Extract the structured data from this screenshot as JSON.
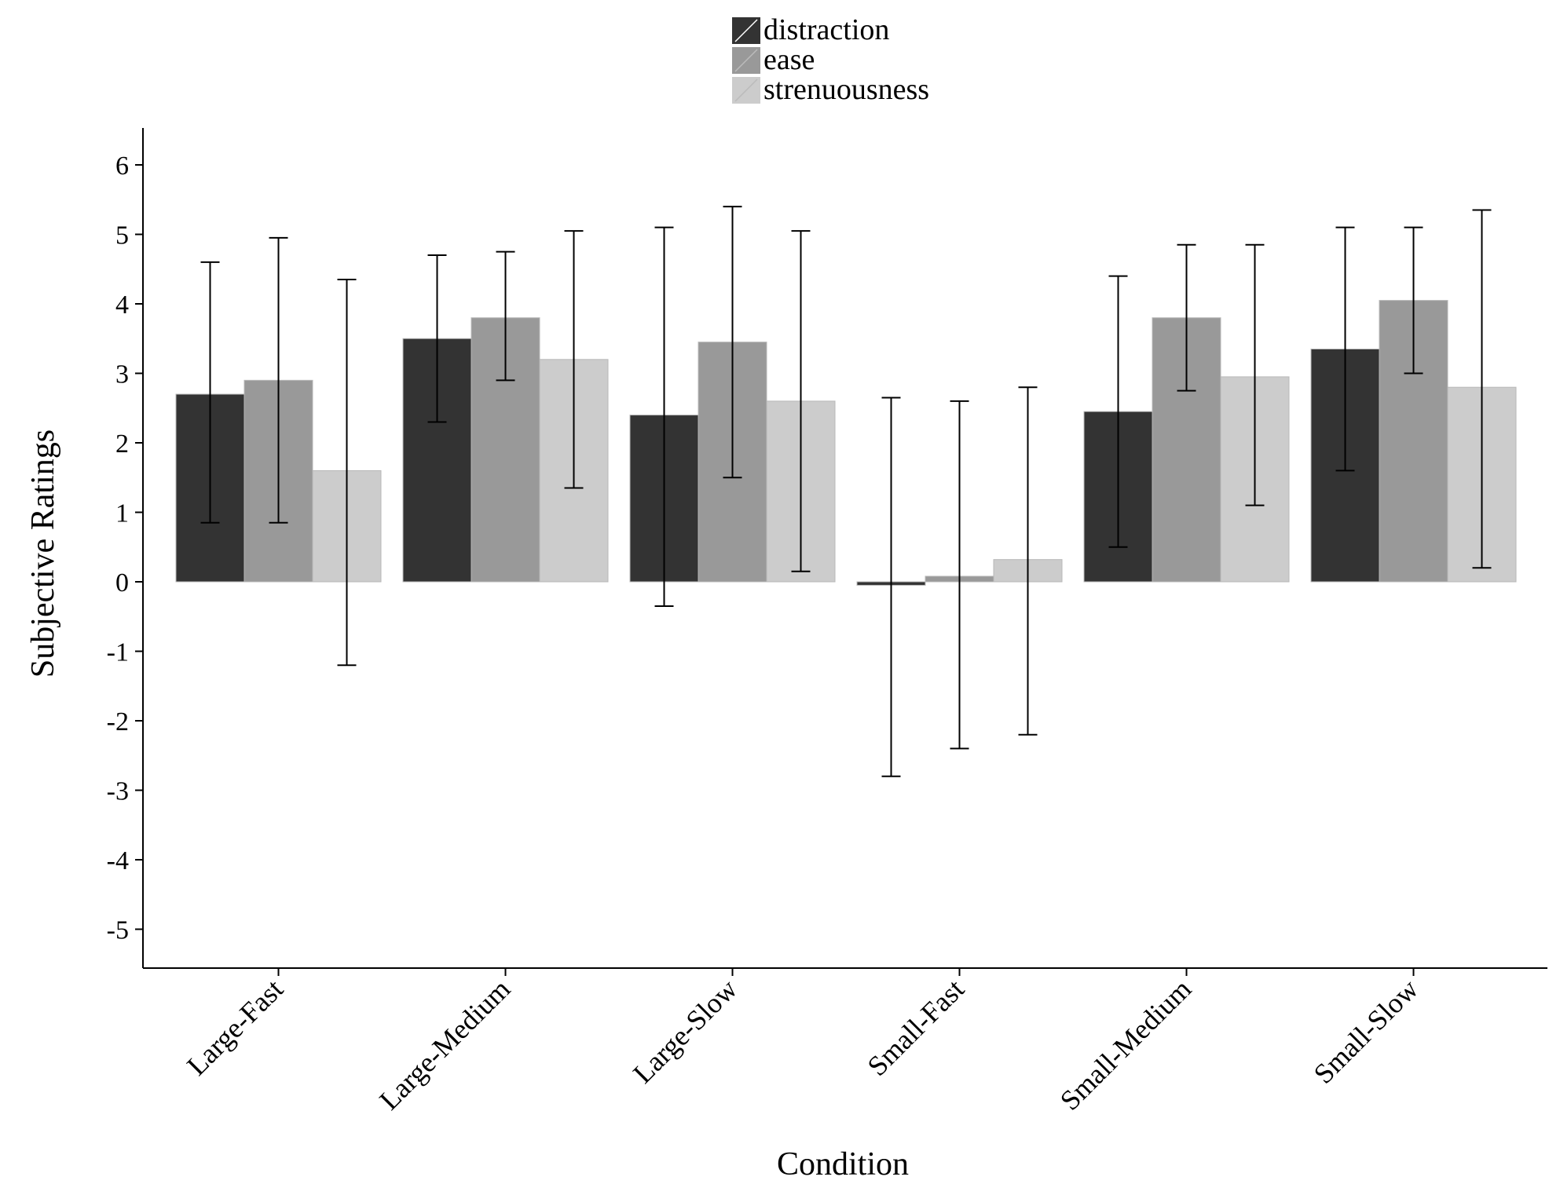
{
  "chart_data": {
    "type": "bar",
    "title": "",
    "xlabel": "Condition",
    "ylabel": "Subjective Ratings",
    "ylim": [
      -5.5,
      6.5
    ],
    "yticks": [
      6,
      5,
      4,
      3,
      2,
      1,
      0,
      -1,
      -2,
      -3,
      -4,
      -5
    ],
    "ytick_labels": [
      "6",
      "5",
      "4",
      "3",
      "2",
      "1",
      "0",
      "-1",
      "-2",
      "-3",
      "-4",
      "-5"
    ],
    "grid": false,
    "legend_position": "top-center",
    "categories": [
      "Large-Fast",
      "Large-Medium",
      "Large-Slow",
      "Small-Fast",
      "Small-Medium",
      "Small-Slow"
    ],
    "series": [
      {
        "name": "distraction",
        "color": "#333333",
        "values": [
          2.7,
          3.5,
          2.4,
          -0.05,
          2.45,
          3.35
        ],
        "err_low": [
          0.85,
          2.3,
          -0.35,
          -2.8,
          0.5,
          1.6
        ],
        "err_high": [
          4.6,
          4.7,
          5.1,
          2.65,
          4.4,
          5.1
        ]
      },
      {
        "name": "ease",
        "color": "#999999",
        "values": [
          2.9,
          3.8,
          3.45,
          0.08,
          3.8,
          4.05
        ],
        "err_low": [
          0.85,
          2.9,
          1.5,
          -2.4,
          2.75,
          3.0
        ],
        "err_high": [
          4.95,
          4.75,
          5.4,
          2.6,
          4.85,
          5.1
        ]
      },
      {
        "name": "strenuousness",
        "color": "#cccccc",
        "values": [
          1.6,
          3.2,
          2.6,
          0.32,
          2.95,
          2.8
        ],
        "err_low": [
          -1.2,
          1.35,
          0.15,
          -2.2,
          1.1,
          0.2
        ],
        "err_high": [
          4.35,
          5.05,
          5.05,
          2.8,
          4.85,
          5.35
        ]
      }
    ]
  }
}
